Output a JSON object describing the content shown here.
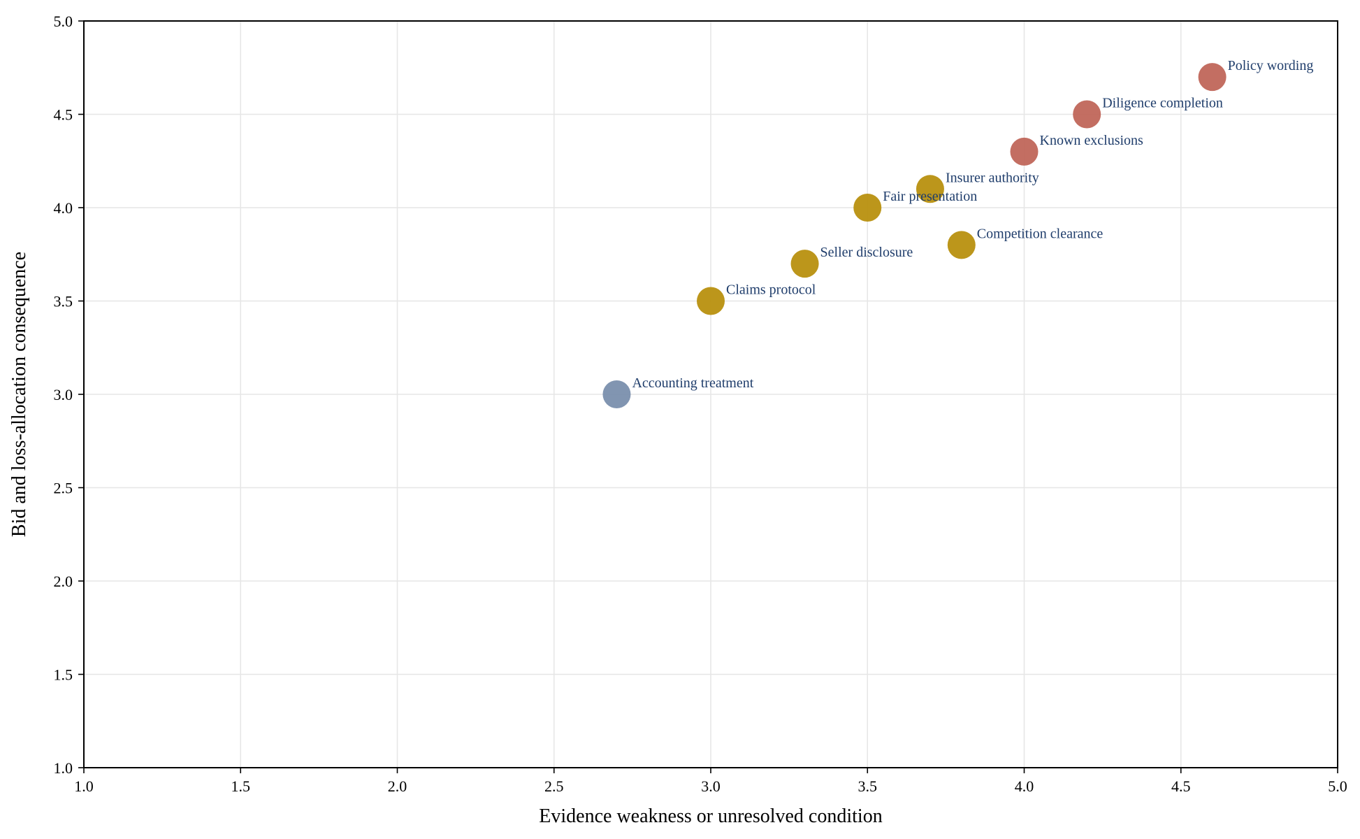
{
  "chart_data": {
    "type": "scatter",
    "title": "",
    "xlabel": "Evidence weakness or unresolved condition",
    "ylabel": "Bid and loss-allocation consequence",
    "xlim": [
      1.0,
      5.0
    ],
    "ylim": [
      1.0,
      5.0
    ],
    "x_ticks": [
      "1.0",
      "1.5",
      "2.0",
      "2.5",
      "3.0",
      "3.5",
      "4.0",
      "4.5",
      "5.0"
    ],
    "y_ticks": [
      "1.0",
      "1.5",
      "2.0",
      "2.5",
      "3.0",
      "3.5",
      "4.0",
      "4.5",
      "5.0"
    ],
    "grid": true,
    "legend": "none",
    "colors": {
      "high": "#c0665a",
      "medium": "#b8900f",
      "low": "#7a8fad",
      "label": "#1f3d6b"
    },
    "points": [
      {
        "label": "Policy wording",
        "x": 4.6,
        "y": 4.7,
        "group": "high"
      },
      {
        "label": "Diligence completion",
        "x": 4.2,
        "y": 4.5,
        "group": "high"
      },
      {
        "label": "Known exclusions",
        "x": 4.0,
        "y": 4.3,
        "group": "high"
      },
      {
        "label": "Insurer authority",
        "x": 3.7,
        "y": 4.1,
        "group": "medium"
      },
      {
        "label": "Fair presentation",
        "x": 3.5,
        "y": 4.0,
        "group": "medium"
      },
      {
        "label": "Competition clearance",
        "x": 3.8,
        "y": 3.8,
        "group": "medium"
      },
      {
        "label": "Seller disclosure",
        "x": 3.3,
        "y": 3.7,
        "group": "medium"
      },
      {
        "label": "Claims protocol",
        "x": 3.0,
        "y": 3.5,
        "group": "medium"
      },
      {
        "label": "Accounting treatment",
        "x": 2.7,
        "y": 3.0,
        "group": "low"
      }
    ]
  }
}
